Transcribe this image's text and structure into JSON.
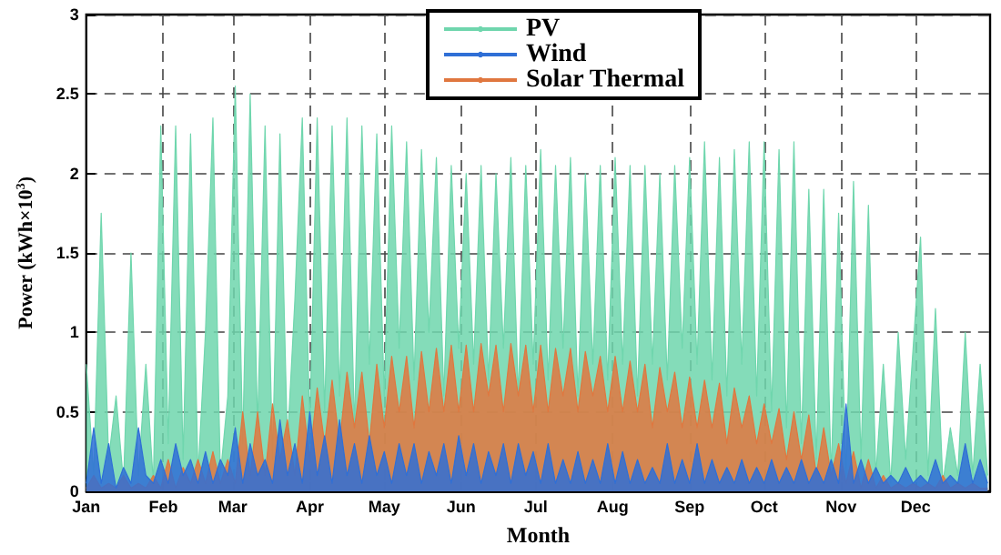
{
  "chart_data": {
    "type": "area",
    "xlabel": "Month",
    "ylabel": "Power (kWh×10$^{3}$)",
    "xlim": [
      "--01-01",
      "--12-31"
    ],
    "xticks": [
      {
        "value": "--01-01",
        "label": "Jan"
      },
      {
        "value": "--02-01",
        "label": "Feb"
      },
      {
        "value": "--03-01",
        "label": "Mar"
      },
      {
        "value": "--04-01",
        "label": "Apr"
      },
      {
        "value": "--05-01",
        "label": "May"
      },
      {
        "value": "--06-01",
        "label": "Jun"
      },
      {
        "value": "--07-01",
        "label": "Jul"
      },
      {
        "value": "--08-01",
        "label": "Aug"
      },
      {
        "value": "--09-01",
        "label": "Sep"
      },
      {
        "value": "--10-01",
        "label": "Oct"
      },
      {
        "value": "--11-01",
        "label": "Nov"
      },
      {
        "value": "--12-01",
        "label": "Dec"
      }
    ],
    "ylim": [
      0,
      3
    ],
    "yticks": [
      0,
      0.5,
      1,
      1.5,
      2,
      2.5,
      3
    ],
    "grid": true,
    "legend": "top",
    "x": [
      "--01-01",
      "--01-04",
      "--01-07",
      "--01-10",
      "--01-13",
      "--01-16",
      "--01-19",
      "--01-22",
      "--01-25",
      "--01-28",
      "--01-31",
      "--02-03",
      "--02-06",
      "--02-09",
      "--02-12",
      "--02-15",
      "--02-18",
      "--02-21",
      "--02-24",
      "--02-27",
      "--03-02",
      "--03-05",
      "--03-08",
      "--03-11",
      "--03-14",
      "--03-17",
      "--03-20",
      "--03-23",
      "--03-26",
      "--03-29",
      "--04-01",
      "--04-04",
      "--04-07",
      "--04-10",
      "--04-13",
      "--04-16",
      "--04-19",
      "--04-22",
      "--04-25",
      "--04-28",
      "--05-01",
      "--05-04",
      "--05-07",
      "--05-10",
      "--05-13",
      "--05-16",
      "--05-19",
      "--05-22",
      "--05-25",
      "--05-28",
      "--05-31",
      "--06-03",
      "--06-06",
      "--06-09",
      "--06-12",
      "--06-15",
      "--06-18",
      "--06-21",
      "--06-24",
      "--06-27",
      "--06-30",
      "--07-03",
      "--07-06",
      "--07-09",
      "--07-12",
      "--07-15",
      "--07-18",
      "--07-21",
      "--07-24",
      "--07-27",
      "--07-30",
      "--08-02",
      "--08-05",
      "--08-08",
      "--08-11",
      "--08-14",
      "--08-17",
      "--08-20",
      "--08-23",
      "--08-26",
      "--08-29",
      "--09-01",
      "--09-04",
      "--09-07",
      "--09-10",
      "--09-13",
      "--09-16",
      "--09-19",
      "--09-22",
      "--09-25",
      "--09-28",
      "--10-01",
      "--10-04",
      "--10-07",
      "--10-10",
      "--10-13",
      "--10-16",
      "--10-19",
      "--10-22",
      "--10-25",
      "--10-28",
      "--10-31",
      "--11-03",
      "--11-06",
      "--11-09",
      "--11-12",
      "--11-15",
      "--11-18",
      "--11-21",
      "--11-24",
      "--11-27",
      "--11-30",
      "--12-03",
      "--12-06",
      "--12-09",
      "--12-12",
      "--12-15",
      "--12-18",
      "--12-21",
      "--12-24",
      "--12-27",
      "--12-30"
    ],
    "series": [
      {
        "name": "PV",
        "color": "#6fd6ad",
        "values": [
          0.8,
          0.1,
          1.75,
          0.2,
          0.6,
          0.05,
          1.5,
          0.1,
          0.8,
          0.05,
          2.3,
          0.3,
          2.3,
          0.2,
          2.25,
          0.1,
          1.0,
          2.35,
          0.1,
          0.6,
          2.55,
          0.3,
          2.5,
          0.4,
          2.3,
          0.2,
          2.25,
          0.3,
          1.2,
          2.35,
          0.4,
          2.35,
          0.5,
          2.3,
          0.6,
          2.35,
          0.4,
          2.3,
          0.8,
          2.25,
          0.6,
          2.3,
          0.9,
          2.2,
          0.7,
          2.15,
          1.0,
          2.1,
          0.6,
          2.05,
          0.9,
          2.0,
          0.8,
          2.05,
          0.7,
          2.0,
          0.9,
          2.1,
          0.6,
          2.05,
          0.8,
          2.15,
          0.7,
          2.05,
          0.9,
          2.1,
          0.6,
          2.0,
          0.8,
          2.05,
          0.7,
          2.1,
          0.8,
          2.05,
          0.6,
          2.05,
          0.8,
          2.0,
          0.7,
          2.05,
          0.9,
          2.1,
          0.8,
          2.2,
          0.7,
          2.1,
          0.6,
          2.15,
          0.8,
          2.2,
          0.6,
          2.2,
          0.5,
          2.15,
          0.4,
          2.2,
          0.3,
          1.9,
          0.2,
          1.9,
          0.1,
          1.75,
          0.1,
          1.95,
          0.2,
          1.8,
          0.1,
          0.8,
          0.05,
          1.0,
          0.2,
          0.9,
          1.6,
          0.1,
          1.15,
          0.05,
          0.4,
          0.1,
          1.0,
          0.1,
          0.8,
          0.1
        ]
      },
      {
        "name": "Wind",
        "color": "#2f6fd6",
        "values": [
          0.05,
          0.4,
          0.05,
          0.3,
          0.02,
          0.15,
          0.05,
          0.4,
          0.1,
          0.05,
          0.2,
          0.05,
          0.3,
          0.1,
          0.2,
          0.05,
          0.25,
          0.05,
          0.2,
          0.1,
          0.4,
          0.05,
          0.3,
          0.1,
          0.2,
          0.05,
          0.45,
          0.1,
          0.3,
          0.05,
          0.5,
          0.1,
          0.35,
          0.05,
          0.45,
          0.1,
          0.3,
          0.05,
          0.35,
          0.1,
          0.25,
          0.05,
          0.3,
          0.1,
          0.3,
          0.05,
          0.25,
          0.1,
          0.3,
          0.05,
          0.35,
          0.1,
          0.3,
          0.05,
          0.25,
          0.1,
          0.3,
          0.05,
          0.3,
          0.1,
          0.25,
          0.05,
          0.3,
          0.05,
          0.2,
          0.05,
          0.25,
          0.05,
          0.2,
          0.05,
          0.3,
          0.05,
          0.25,
          0.05,
          0.2,
          0.05,
          0.15,
          0.05,
          0.3,
          0.05,
          0.2,
          0.05,
          0.3,
          0.05,
          0.2,
          0.05,
          0.15,
          0.05,
          0.2,
          0.05,
          0.15,
          0.05,
          0.2,
          0.05,
          0.15,
          0.05,
          0.2,
          0.05,
          0.15,
          0.05,
          0.2,
          0.05,
          0.55,
          0.05,
          0.2,
          0.05,
          0.15,
          0.05,
          0.1,
          0.05,
          0.15,
          0.05,
          0.1,
          0.05,
          0.2,
          0.05,
          0.1,
          0.05,
          0.3,
          0.05,
          0.2,
          0.05
        ]
      },
      {
        "name": "Solar Thermal",
        "color": "#e0773f",
        "values": [
          0.02,
          0.1,
          0.02,
          0.05,
          0.02,
          0.1,
          0.02,
          0.05,
          0.02,
          0.1,
          0.02,
          0.2,
          0.02,
          0.15,
          0.05,
          0.2,
          0.05,
          0.25,
          0.05,
          0.2,
          0.05,
          0.5,
          0.1,
          0.5,
          0.1,
          0.55,
          0.2,
          0.45,
          0.1,
          0.6,
          0.2,
          0.65,
          0.3,
          0.7,
          0.3,
          0.75,
          0.4,
          0.75,
          0.3,
          0.8,
          0.4,
          0.85,
          0.5,
          0.85,
          0.4,
          0.88,
          0.5,
          0.9,
          0.5,
          0.92,
          0.5,
          0.92,
          0.5,
          0.93,
          0.6,
          0.92,
          0.5,
          0.93,
          0.6,
          0.92,
          0.5,
          0.92,
          0.5,
          0.9,
          0.6,
          0.9,
          0.5,
          0.88,
          0.6,
          0.85,
          0.5,
          0.85,
          0.5,
          0.82,
          0.5,
          0.8,
          0.4,
          0.78,
          0.5,
          0.75,
          0.4,
          0.72,
          0.4,
          0.7,
          0.4,
          0.68,
          0.3,
          0.65,
          0.4,
          0.6,
          0.3,
          0.55,
          0.3,
          0.52,
          0.2,
          0.5,
          0.2,
          0.48,
          0.1,
          0.4,
          0.1,
          0.3,
          0.05,
          0.25,
          0.02,
          0.2,
          0.02,
          0.1,
          0.02,
          0.05,
          0.02,
          0.05,
          0.02,
          0.05,
          0.02,
          0.1,
          0.02,
          0.05,
          0.02,
          0.05,
          0.02,
          0.02
        ]
      }
    ]
  }
}
